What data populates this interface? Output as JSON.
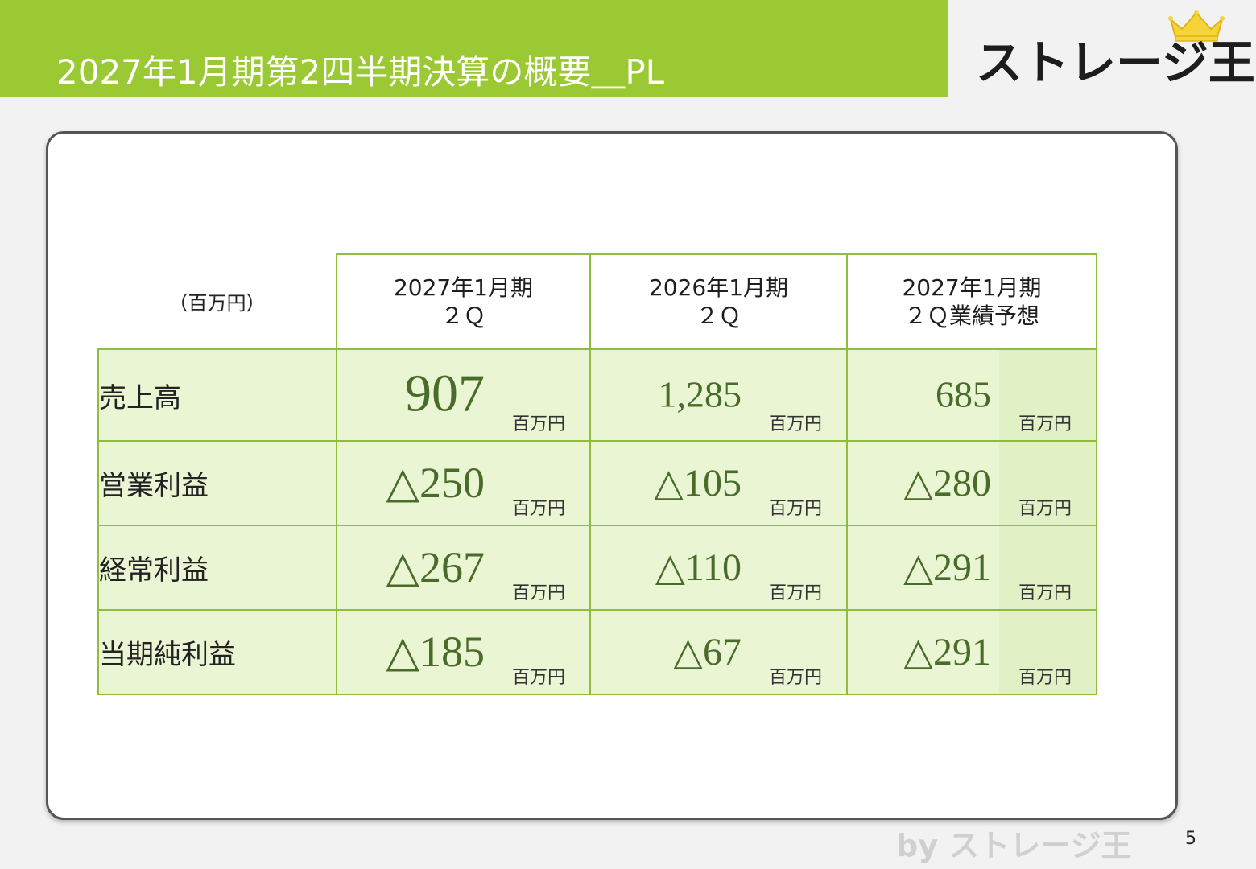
{
  "header": {
    "title": "2027年1月期第2四半期決算の概要＿PL",
    "logo_text": "ストレージ王",
    "logo_icon": "crown-icon"
  },
  "table": {
    "unit_label": "（百万円）",
    "columns": [
      {
        "line1": "2027年1月期",
        "line2": "２Ｑ"
      },
      {
        "line1": "2026年1月期",
        "line2": "２Ｑ"
      },
      {
        "line1": "2027年1月期",
        "line2": "２Ｑ業績予想"
      }
    ],
    "unit_suffix": "百万円",
    "rows": [
      {
        "label": "売上高",
        "values": [
          "907",
          "1,285",
          "685"
        ]
      },
      {
        "label": "営業利益",
        "values": [
          "△250",
          "△105",
          "△280"
        ]
      },
      {
        "label": "経常利益",
        "values": [
          "△267",
          "△110",
          "△291"
        ]
      },
      {
        "label": "当期純利益",
        "values": [
          "△185",
          "△67",
          "△291"
        ]
      }
    ]
  },
  "footer": {
    "by_text": "by ストレージ王",
    "page_number": "5"
  },
  "colors": {
    "accent": "#9ac934",
    "table_border": "#8fbe3c",
    "row_background": "#eaf6d3",
    "value_text": "#4a6c2a"
  }
}
